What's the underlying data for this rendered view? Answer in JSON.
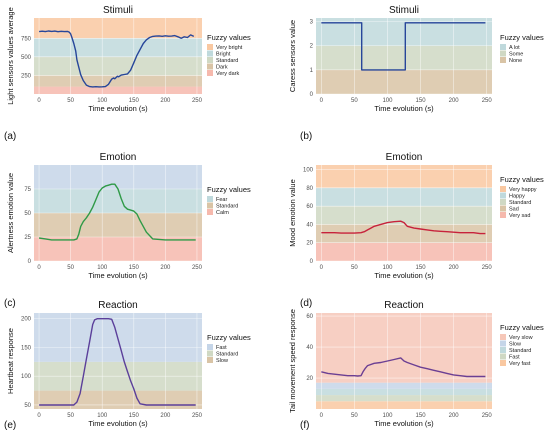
{
  "panel_labels": [
    "(a)",
    "(b)",
    "(c)",
    "(d)",
    "(e)",
    "(f)"
  ],
  "chart_data": [
    {
      "type": "line",
      "title": "Stimuli",
      "xlabel": "Time evolution (s)",
      "ylabel": "Light sensors values average",
      "xlim": [
        -8,
        258
      ],
      "ylim": [
        0,
        1023
      ],
      "xticks": [
        0,
        50,
        100,
        150,
        200,
        250
      ],
      "yticks": [
        250,
        500,
        750
      ],
      "legend_title": "Fuzzy values",
      "bands": [
        {
          "name": "Very dark",
          "from": 0,
          "to": 100,
          "color": "#f6b9ad"
        },
        {
          "name": "Dark",
          "from": 100,
          "to": 250,
          "color": "#d9c4a6"
        },
        {
          "name": "Standard",
          "from": 250,
          "to": 500,
          "color": "#cfd8c3"
        },
        {
          "name": "Bright",
          "from": 500,
          "to": 750,
          "color": "#bfd9dc"
        },
        {
          "name": "Very bright",
          "from": 750,
          "to": 1023,
          "color": "#f9c8a1"
        }
      ],
      "series": [
        {
          "color": "#27469a",
          "x": [
            0,
            5,
            10,
            15,
            20,
            25,
            30,
            35,
            40,
            45,
            48,
            50,
            52,
            55,
            58,
            60,
            63,
            66,
            70,
            75,
            80,
            85,
            90,
            95,
            100,
            105,
            110,
            115,
            118,
            120,
            124,
            126,
            130,
            135,
            140,
            145,
            150,
            155,
            160,
            165,
            170,
            175,
            180,
            185,
            190,
            195,
            200,
            205,
            210,
            215,
            220,
            225,
            230,
            235,
            240,
            245
          ],
          "y": [
            840,
            845,
            840,
            848,
            842,
            846,
            838,
            844,
            840,
            842,
            830,
            810,
            760,
            680,
            580,
            460,
            360,
            260,
            180,
            120,
            100,
            96,
            98,
            95,
            97,
            100,
            130,
            200,
            215,
            205,
            240,
            232,
            255,
            262,
            270,
            320,
            420,
            520,
            600,
            680,
            730,
            760,
            775,
            780,
            782,
            776,
            784,
            778,
            780,
            786,
            770,
            750,
            770,
            760,
            795,
            775
          ]
        }
      ]
    },
    {
      "type": "line",
      "title": "Stimuli",
      "xlabel": "Time evolution (s)",
      "ylabel": "Caress sensors value",
      "xlim": [
        -8,
        258
      ],
      "ylim": [
        0,
        3.15
      ],
      "xticks": [
        0,
        50,
        100,
        150,
        200,
        250
      ],
      "yticks": [
        0,
        1,
        2,
        3
      ],
      "legend_title": "Fuzzy values",
      "bands": [
        {
          "name": "None",
          "from": 0,
          "to": 1,
          "color": "#d9c4a6"
        },
        {
          "name": "Some",
          "from": 1,
          "to": 2,
          "color": "#cfd8c3"
        },
        {
          "name": "A lot",
          "from": 2,
          "to": 3.15,
          "color": "#bfd9dc"
        }
      ],
      "series": [
        {
          "color": "#27469a",
          "x": [
            0,
            61,
            61,
            127,
            127,
            248
          ],
          "y": [
            2.95,
            2.95,
            1,
            1,
            2.95,
            2.95
          ]
        }
      ]
    },
    {
      "type": "line",
      "title": "Emotion",
      "xlabel": "Time evolution (s)",
      "ylabel": "Alertness emotion value",
      "xlim": [
        -8,
        258
      ],
      "ylim": [
        0,
        100
      ],
      "xticks": [
        0,
        50,
        100,
        150,
        200,
        250
      ],
      "yticks": [
        0,
        25,
        50,
        75
      ],
      "legend_title": "Fuzzy values",
      "bands": [
        {
          "name": "Calm",
          "from": 0,
          "to": 25,
          "color": "#f6b9ad"
        },
        {
          "name": "Standard",
          "from": 25,
          "to": 50,
          "color": "#d9c4a6"
        },
        {
          "name": "Fear",
          "from": 50,
          "to": 75,
          "color": "#bfd9dc"
        },
        {
          "name": "",
          "from": 75,
          "to": 100,
          "color": "#c5d5e8"
        }
      ],
      "series": [
        {
          "color": "#2f9a47",
          "x": [
            0,
            10,
            20,
            30,
            40,
            50,
            55,
            60,
            63,
            66,
            70,
            75,
            80,
            85,
            90,
            95,
            100,
            105,
            110,
            115,
            120,
            125,
            130,
            135,
            140,
            145,
            150,
            155,
            160,
            170,
            180,
            200,
            220,
            248
          ],
          "y": [
            24,
            23,
            22,
            22,
            22,
            22,
            22,
            23,
            28,
            36,
            41,
            45,
            50,
            56,
            64,
            72,
            76,
            78,
            79,
            80,
            80,
            75,
            65,
            57,
            54,
            53,
            52,
            49,
            42,
            30,
            23,
            22,
            22,
            22
          ]
        }
      ]
    },
    {
      "type": "line",
      "title": "Emotion",
      "xlabel": "Time evolution (s)",
      "ylabel": "Mood emotion value",
      "xlim": [
        -8,
        258
      ],
      "ylim": [
        0,
        105
      ],
      "xticks": [
        0,
        50,
        100,
        150,
        200,
        250
      ],
      "yticks": [
        0,
        20,
        40,
        60,
        80,
        100
      ],
      "legend_title": "Fuzzy values",
      "bands": [
        {
          "name": "Very sad",
          "from": 0,
          "to": 20,
          "color": "#f6b9ad"
        },
        {
          "name": "Sad",
          "from": 20,
          "to": 40,
          "color": "#d9c4a6"
        },
        {
          "name": "Standard",
          "from": 40,
          "to": 60,
          "color": "#cfd8c3"
        },
        {
          "name": "Happy",
          "from": 60,
          "to": 80,
          "color": "#bfd9dc"
        },
        {
          "name": "Very happy",
          "from": 80,
          "to": 105,
          "color": "#f9c8a1"
        }
      ],
      "series": [
        {
          "color": "#c7223b",
          "x": [
            0,
            10,
            20,
            30,
            40,
            50,
            60,
            65,
            70,
            75,
            80,
            90,
            100,
            110,
            120,
            125,
            130,
            140,
            150,
            160,
            170,
            180,
            190,
            200,
            210,
            220,
            230,
            240,
            248
          ],
          "y": [
            31,
            31,
            31,
            30.5,
            30.5,
            30.5,
            31,
            32,
            34,
            36,
            38,
            40,
            42,
            43,
            43.5,
            42,
            38,
            36,
            35,
            34,
            33,
            32.5,
            32,
            31.5,
            31,
            31,
            31,
            30,
            30
          ]
        }
      ]
    },
    {
      "type": "line",
      "title": "Reaction",
      "xlabel": "Time evolution (s)",
      "ylabel": "Heartbeat response",
      "xlim": [
        -8,
        258
      ],
      "ylim": [
        43,
        210
      ],
      "xticks": [
        0,
        50,
        100,
        150,
        200,
        250
      ],
      "yticks": [
        50,
        100,
        150,
        200
      ],
      "legend_title": "Fuzzy values",
      "bands": [
        {
          "name": "Slow",
          "from": 43,
          "to": 75,
          "color": "#d9c4a6"
        },
        {
          "name": "Standard",
          "from": 75,
          "to": 125,
          "color": "#cfd8c3"
        },
        {
          "name": "Fast",
          "from": 125,
          "to": 210,
          "color": "#c5d5e8"
        }
      ],
      "series": [
        {
          "color": "#5b3f9a",
          "x": [
            0,
            20,
            40,
            55,
            60,
            65,
            70,
            75,
            80,
            85,
            88,
            92,
            100,
            110,
            115,
            120,
            125,
            130,
            135,
            140,
            145,
            150,
            155,
            160,
            170,
            200,
            248
          ],
          "y": [
            50,
            50,
            50,
            50,
            55,
            70,
            100,
            130,
            160,
            190,
            198,
            200,
            200,
            200,
            199,
            185,
            165,
            145,
            125,
            108,
            92,
            78,
            62,
            52,
            50,
            50,
            50
          ]
        }
      ]
    },
    {
      "type": "line",
      "title": "Reaction",
      "xlabel": "Time evolution (s)",
      "ylabel": "Tail movement speed response",
      "xlim": [
        -8,
        258
      ],
      "ylim": [
        0,
        62
      ],
      "xticks": [
        0,
        50,
        100,
        150,
        200,
        250
      ],
      "yticks": [
        20,
        40,
        60
      ],
      "legend_title": "Fuzzy values",
      "bands": [
        {
          "name": "Very fast",
          "from": 0,
          "to": 5,
          "color": "#f9c8a1"
        },
        {
          "name": "Fast",
          "from": 5,
          "to": 9,
          "color": "#cfd8c3"
        },
        {
          "name": "Standard",
          "from": 9,
          "to": 13,
          "color": "#bfd9dc"
        },
        {
          "name": "Slow",
          "from": 13,
          "to": 17,
          "color": "#c5d5e8"
        },
        {
          "name": "Very slow",
          "from": 17,
          "to": 62,
          "color": "#f6c7b8"
        }
      ],
      "series": [
        {
          "color": "#6b3f93",
          "x": [
            0,
            10,
            20,
            30,
            40,
            50,
            55,
            60,
            63,
            66,
            70,
            80,
            90,
            100,
            110,
            120,
            125,
            130,
            140,
            150,
            160,
            170,
            180,
            190,
            200,
            210,
            220,
            230,
            240,
            248
          ],
          "y": [
            24,
            23,
            22.5,
            22,
            21.5,
            21.5,
            21.3,
            21.5,
            24,
            26,
            28,
            29.5,
            30,
            31,
            32,
            33,
            31,
            30,
            28.5,
            27,
            26,
            25,
            24,
            23,
            22,
            21.5,
            21,
            21,
            21,
            21
          ]
        }
      ]
    }
  ]
}
